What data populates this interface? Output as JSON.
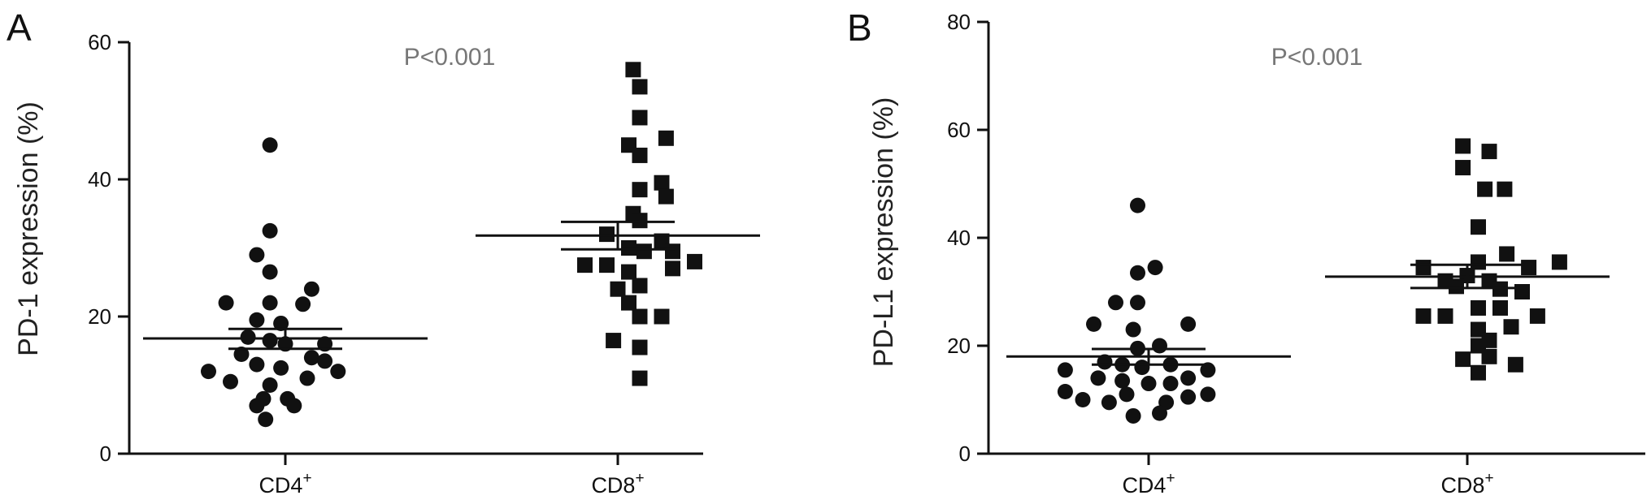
{
  "chart_data": [
    {
      "type": "scatter",
      "panel": "A",
      "ylabel": "PD-1 expression (%)",
      "ylim": [
        0,
        60
      ],
      "yticks": [
        0,
        20,
        40,
        60
      ],
      "annotation": "P<0.001",
      "categories": [
        "CD4+",
        "CD8+"
      ],
      "category_labels": [
        {
          "base": "CD4",
          "sup": "+"
        },
        {
          "base": "CD8",
          "sup": "+"
        }
      ],
      "series": [
        {
          "marker": "circle",
          "points": [
            [
              -0.07,
              45
            ],
            [
              -0.07,
              32.5
            ],
            [
              -0.13,
              29
            ],
            [
              -0.07,
              26.5
            ],
            [
              -0.27,
              22
            ],
            [
              -0.07,
              22
            ],
            [
              0.12,
              24
            ],
            [
              0.08,
              21.8
            ],
            [
              -0.13,
              19.5
            ],
            [
              -0.02,
              19
            ],
            [
              -0.17,
              17
            ],
            [
              -0.07,
              16.5
            ],
            [
              0.0,
              16
            ],
            [
              0.18,
              16
            ],
            [
              -0.2,
              14.5
            ],
            [
              0.12,
              14
            ],
            [
              0.18,
              13.5
            ],
            [
              -0.13,
              13
            ],
            [
              -0.02,
              12.5
            ],
            [
              -0.35,
              12
            ],
            [
              0.24,
              12
            ],
            [
              -0.25,
              10.5
            ],
            [
              -0.07,
              10
            ],
            [
              0.1,
              11
            ],
            [
              -0.1,
              8
            ],
            [
              0.01,
              8
            ],
            [
              -0.13,
              7
            ],
            [
              0.04,
              7
            ],
            [
              -0.09,
              5
            ]
          ],
          "mean": 16.8,
          "sem_upper": 18.2,
          "sem_lower": 15.3
        },
        {
          "marker": "square",
          "points": [
            [
              1.07,
              56
            ],
            [
              1.1,
              53.5
            ],
            [
              1.1,
              49
            ],
            [
              1.22,
              46
            ],
            [
              1.05,
              45
            ],
            [
              1.1,
              43.5
            ],
            [
              1.2,
              39.5
            ],
            [
              1.1,
              38.5
            ],
            [
              1.22,
              37.5
            ],
            [
              1.07,
              35
            ],
            [
              1.1,
              34
            ],
            [
              0.95,
              32
            ],
            [
              1.05,
              30
            ],
            [
              1.12,
              29.5
            ],
            [
              1.2,
              31
            ],
            [
              1.25,
              29.5
            ],
            [
              0.85,
              27.5
            ],
            [
              0.95,
              27.5
            ],
            [
              1.25,
              27
            ],
            [
              1.35,
              28
            ],
            [
              1.05,
              26.5
            ],
            [
              1.0,
              24
            ],
            [
              1.1,
              24.5
            ],
            [
              1.05,
              22
            ],
            [
              1.1,
              20
            ],
            [
              1.2,
              20
            ],
            [
              0.98,
              16.5
            ],
            [
              1.1,
              15.5
            ],
            [
              1.1,
              11
            ]
          ],
          "mean": 31.8,
          "sem_upper": 33.8,
          "sem_lower": 29.8
        }
      ]
    },
    {
      "type": "scatter",
      "panel": "B",
      "ylabel": "PD-L1 expression (%)",
      "ylim": [
        0,
        80
      ],
      "yticks": [
        0,
        20,
        40,
        60,
        80
      ],
      "annotation": "P<0.001",
      "categories": [
        "CD4+",
        "CD8+"
      ],
      "category_labels": [
        {
          "base": "CD4",
          "sup": "+"
        },
        {
          "base": "CD8",
          "sup": "+"
        }
      ],
      "series": [
        {
          "marker": "circle",
          "points": [
            [
              -0.05,
              46
            ],
            [
              0.03,
              34.5
            ],
            [
              -0.05,
              33.5
            ],
            [
              -0.15,
              28
            ],
            [
              -0.05,
              28
            ],
            [
              -0.25,
              24
            ],
            [
              -0.07,
              23
            ],
            [
              0.18,
              24
            ],
            [
              -0.05,
              19.5
            ],
            [
              0.05,
              20
            ],
            [
              -0.2,
              17
            ],
            [
              -0.12,
              16.5
            ],
            [
              -0.03,
              16
            ],
            [
              0.1,
              16.5
            ],
            [
              0.27,
              15.5
            ],
            [
              -0.38,
              15.5
            ],
            [
              -0.23,
              14
            ],
            [
              -0.12,
              13.5
            ],
            [
              0.0,
              13
            ],
            [
              0.1,
              13
            ],
            [
              0.18,
              14
            ],
            [
              -0.38,
              11.5
            ],
            [
              -0.1,
              11
            ],
            [
              0.27,
              11
            ],
            [
              -0.3,
              10
            ],
            [
              -0.18,
              9.5
            ],
            [
              0.08,
              9.5
            ],
            [
              0.18,
              10.5
            ],
            [
              -0.07,
              7
            ],
            [
              0.05,
              7.5
            ]
          ],
          "mean": 18.0,
          "sem_upper": 19.4,
          "sem_lower": 16.5
        },
        {
          "marker": "square",
          "points": [
            [
              0.98,
              57
            ],
            [
              1.1,
              56
            ],
            [
              0.98,
              53
            ],
            [
              1.08,
              49
            ],
            [
              1.17,
              49
            ],
            [
              1.05,
              42
            ],
            [
              1.18,
              37
            ],
            [
              1.05,
              35.5
            ],
            [
              0.8,
              34.5
            ],
            [
              1.28,
              34.5
            ],
            [
              1.42,
              35.5
            ],
            [
              0.9,
              32
            ],
            [
              1.0,
              33
            ],
            [
              0.95,
              31
            ],
            [
              1.1,
              32
            ],
            [
              1.15,
              30.5
            ],
            [
              1.25,
              30
            ],
            [
              0.8,
              25.5
            ],
            [
              0.9,
              25.5
            ],
            [
              1.05,
              27
            ],
            [
              1.15,
              27
            ],
            [
              1.32,
              25.5
            ],
            [
              1.05,
              23
            ],
            [
              1.1,
              21
            ],
            [
              1.2,
              23.5
            ],
            [
              1.05,
              20
            ],
            [
              0.98,
              17.5
            ],
            [
              1.1,
              18
            ],
            [
              1.05,
              15
            ],
            [
              1.22,
              16.5
            ]
          ],
          "mean": 32.8,
          "sem_upper": 35.0,
          "sem_lower": 30.7
        }
      ]
    }
  ]
}
